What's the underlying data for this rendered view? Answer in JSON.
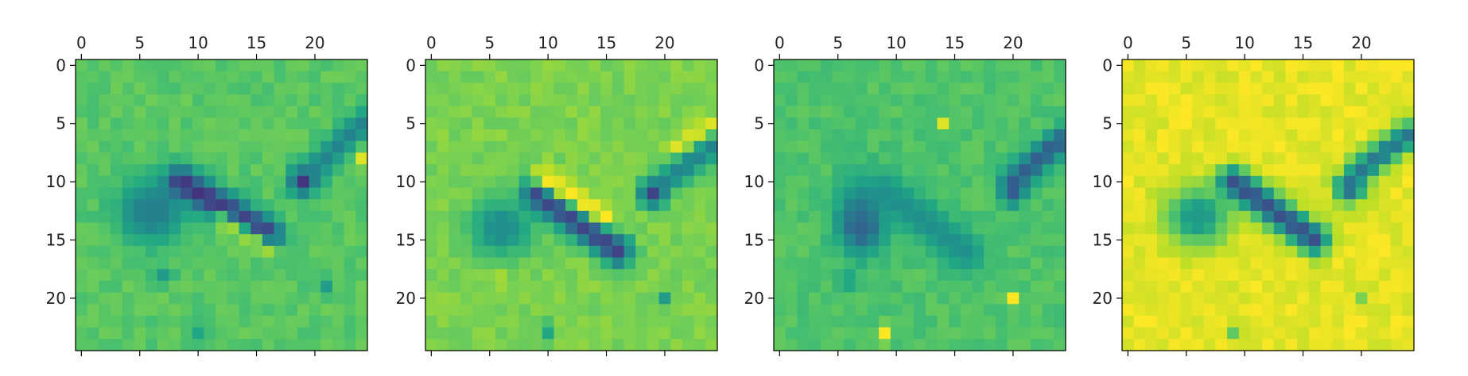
{
  "chart_data": [
    {
      "type": "heatmap",
      "panel": 1,
      "colormap": "viridis",
      "grid_size": [
        25,
        25
      ],
      "xticks": [
        "0",
        "5",
        "10",
        "15",
        "20"
      ],
      "yticks": [
        "0",
        "5",
        "10",
        "15",
        "20"
      ],
      "xlim": [
        -0.5,
        24.5
      ],
      "ylim": [
        24.5,
        -0.5
      ],
      "x_axis_position": "top",
      "grid": false,
      "background_level": 0.74,
      "features": [
        {
          "shape": "blob",
          "x": 6,
          "y": 12.5,
          "sx": 0.9,
          "sy": 0.9,
          "level": 0.0
        },
        {
          "shape": "blob",
          "x": 6,
          "y": 12.5,
          "sx": 2.2,
          "sy": 2.0,
          "level": 0.45
        },
        {
          "shape": "stroke",
          "x1": 8.5,
          "y1": 10,
          "x2": 16,
          "y2": 14.5,
          "width": 0.9,
          "level": 0.15
        },
        {
          "shape": "stroke",
          "x1": 12,
          "y1": 13.5,
          "x2": 16,
          "y2": 16,
          "width": 0.6,
          "level": 0.85
        },
        {
          "shape": "blob",
          "x": 19,
          "y": 10,
          "sx": 0.8,
          "sy": 0.8,
          "level": 0.08
        },
        {
          "shape": "stroke",
          "x1": 20,
          "y1": 9,
          "x2": 24,
          "y2": 5,
          "width": 0.8,
          "level": 0.45
        },
        {
          "shape": "blob",
          "x": 24,
          "y": 8,
          "sx": 0.5,
          "sy": 0.5,
          "level": 0.95
        },
        {
          "shape": "blob",
          "x": 7,
          "y": 18,
          "sx": 0.6,
          "sy": 0.5,
          "level": 0.55
        },
        {
          "shape": "blob",
          "x": 21,
          "y": 19,
          "sx": 0.5,
          "sy": 0.5,
          "level": 0.55
        },
        {
          "shape": "blob",
          "x": 10,
          "y": 23,
          "sx": 0.5,
          "sy": 0.8,
          "level": 0.6
        }
      ]
    },
    {
      "type": "heatmap",
      "panel": 2,
      "colormap": "viridis",
      "grid_size": [
        25,
        25
      ],
      "xticks": [
        "0",
        "5",
        "10",
        "15",
        "20"
      ],
      "yticks": [
        "0",
        "5",
        "10",
        "15",
        "20"
      ],
      "xlim": [
        -0.5,
        24.5
      ],
      "ylim": [
        24.5,
        -0.5
      ],
      "x_axis_position": "top",
      "grid": false,
      "background_level": 0.8,
      "features": [
        {
          "shape": "blob",
          "x": 6,
          "y": 14,
          "sx": 0.7,
          "sy": 0.7,
          "level": 0.0
        },
        {
          "shape": "blob",
          "x": 6,
          "y": 14,
          "sx": 2.0,
          "sy": 1.8,
          "level": 0.5
        },
        {
          "shape": "stroke",
          "x1": 9,
          "y1": 11,
          "x2": 16,
          "y2": 16,
          "width": 0.9,
          "level": 0.2
        },
        {
          "shape": "stroke",
          "x1": 9.5,
          "y1": 9.5,
          "x2": 15,
          "y2": 13,
          "width": 0.6,
          "level": 1.0
        },
        {
          "shape": "blob",
          "x": 19,
          "y": 11,
          "sx": 0.8,
          "sy": 0.8,
          "level": 0.15
        },
        {
          "shape": "stroke",
          "x1": 20,
          "y1": 10,
          "x2": 24,
          "y2": 7,
          "width": 0.8,
          "level": 0.45
        },
        {
          "shape": "stroke",
          "x1": 21,
          "y1": 7,
          "x2": 24,
          "y2": 5,
          "width": 0.5,
          "level": 0.95
        },
        {
          "shape": "blob",
          "x": 6,
          "y": 18.5,
          "sx": 0.6,
          "sy": 0.5,
          "level": 0.9
        },
        {
          "shape": "blob",
          "x": 20,
          "y": 20,
          "sx": 0.5,
          "sy": 0.5,
          "level": 0.55
        },
        {
          "shape": "blob",
          "x": 10,
          "y": 23,
          "sx": 0.5,
          "sy": 0.7,
          "level": 0.6
        }
      ]
    },
    {
      "type": "heatmap",
      "panel": 3,
      "colormap": "viridis",
      "grid_size": [
        25,
        25
      ],
      "xticks": [
        "0",
        "5",
        "10",
        "15",
        "20"
      ],
      "yticks": [
        "0",
        "5",
        "10",
        "15",
        "20"
      ],
      "xlim": [
        -0.5,
        24.5
      ],
      "ylim": [
        24.5,
        -0.5
      ],
      "x_axis_position": "top",
      "grid": false,
      "background_level": 0.72,
      "features": [
        {
          "shape": "blob",
          "x": 7,
          "y": 14,
          "sx": 0.8,
          "sy": 0.8,
          "level": 0.0
        },
        {
          "shape": "blob",
          "x": 7,
          "y": 13,
          "sx": 1.5,
          "sy": 2.2,
          "level": 0.35
        },
        {
          "shape": "stroke",
          "x1": 9,
          "y1": 11,
          "x2": 16,
          "y2": 16,
          "width": 1.2,
          "level": 0.5
        },
        {
          "shape": "blob",
          "x": 20,
          "y": 11,
          "sx": 0.7,
          "sy": 0.7,
          "level": 0.3
        },
        {
          "shape": "stroke",
          "x1": 20,
          "y1": 10,
          "x2": 24,
          "y2": 6.5,
          "width": 0.8,
          "level": 0.3
        },
        {
          "shape": "blob",
          "x": 14,
          "y": 5,
          "sx": 0.4,
          "sy": 0.4,
          "level": 0.95
        },
        {
          "shape": "blob",
          "x": 20,
          "y": 20,
          "sx": 0.45,
          "sy": 0.45,
          "level": 1.0
        },
        {
          "shape": "blob",
          "x": 9,
          "y": 23,
          "sx": 0.45,
          "sy": 0.6,
          "level": 1.0
        },
        {
          "shape": "blob",
          "x": 6,
          "y": 18.5,
          "sx": 0.6,
          "sy": 0.5,
          "level": 0.55
        }
      ]
    },
    {
      "type": "heatmap",
      "panel": 4,
      "colormap": "viridis",
      "grid_size": [
        25,
        25
      ],
      "xticks": [
        "0",
        "5",
        "10",
        "15",
        "20"
      ],
      "yticks": [
        "0",
        "5",
        "10",
        "15",
        "20"
      ],
      "xlim": [
        -0.5,
        24.5
      ],
      "ylim": [
        24.5,
        -0.5
      ],
      "x_axis_position": "top",
      "grid": false,
      "background_level": 0.96,
      "features": [
        {
          "shape": "blob",
          "x": 6,
          "y": 13,
          "sx": 0.7,
          "sy": 0.7,
          "level": 0.0
        },
        {
          "shape": "blob",
          "x": 6,
          "y": 13,
          "sx": 2.0,
          "sy": 1.8,
          "level": 0.55
        },
        {
          "shape": "stroke",
          "x1": 9,
          "y1": 10,
          "x2": 16,
          "y2": 15,
          "width": 0.9,
          "level": 0.25
        },
        {
          "shape": "blob",
          "x": 19,
          "y": 10.5,
          "sx": 0.9,
          "sy": 0.9,
          "level": 0.3
        },
        {
          "shape": "stroke",
          "x1": 20,
          "y1": 9,
          "x2": 24,
          "y2": 6,
          "width": 0.8,
          "level": 0.4
        },
        {
          "shape": "blob",
          "x": 9,
          "y": 23,
          "sx": 0.5,
          "sy": 0.5,
          "level": 0.75
        },
        {
          "shape": "blob",
          "x": 20,
          "y": 20,
          "sx": 0.5,
          "sy": 0.5,
          "level": 0.8
        }
      ]
    }
  ]
}
